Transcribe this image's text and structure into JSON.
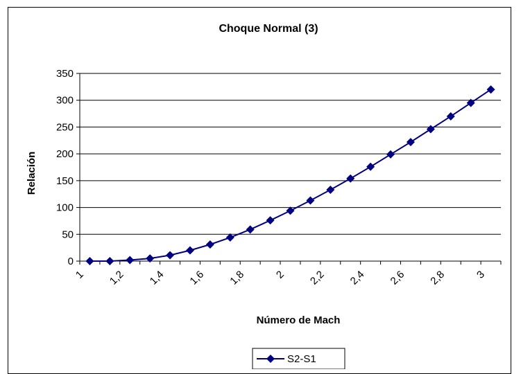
{
  "chart_data": {
    "type": "line",
    "title": "Choque Normal (3)",
    "xlabel": "Número de Mach",
    "ylabel": "Relación",
    "x_ticks": [
      "1",
      "1,2",
      "1,4",
      "1,6",
      "1,8",
      "2",
      "2,2",
      "2,4",
      "2,6",
      "2,8",
      "3"
    ],
    "y_ticks": [
      "0",
      "50",
      "100",
      "150",
      "200",
      "250",
      "300",
      "350"
    ],
    "ylim": [
      0,
      350
    ],
    "xlim": [
      1,
      3.1
    ],
    "grid": "horizontal",
    "legend_position": "bottom",
    "color": "#000080",
    "marker": "diamond",
    "series": [
      {
        "name": "S2-S1",
        "x": [
          1.05,
          1.15,
          1.25,
          1.35,
          1.45,
          1.55,
          1.65,
          1.75,
          1.85,
          1.95,
          2.05,
          2.15,
          2.25,
          2.35,
          2.45,
          2.55,
          2.65,
          2.75,
          2.85,
          2.95,
          3.05
        ],
        "y": [
          0,
          0,
          2,
          5,
          11,
          20,
          31,
          44,
          59,
          76,
          94,
          113,
          133,
          154,
          176,
          199,
          222,
          246,
          270,
          295,
          320
        ]
      }
    ]
  }
}
